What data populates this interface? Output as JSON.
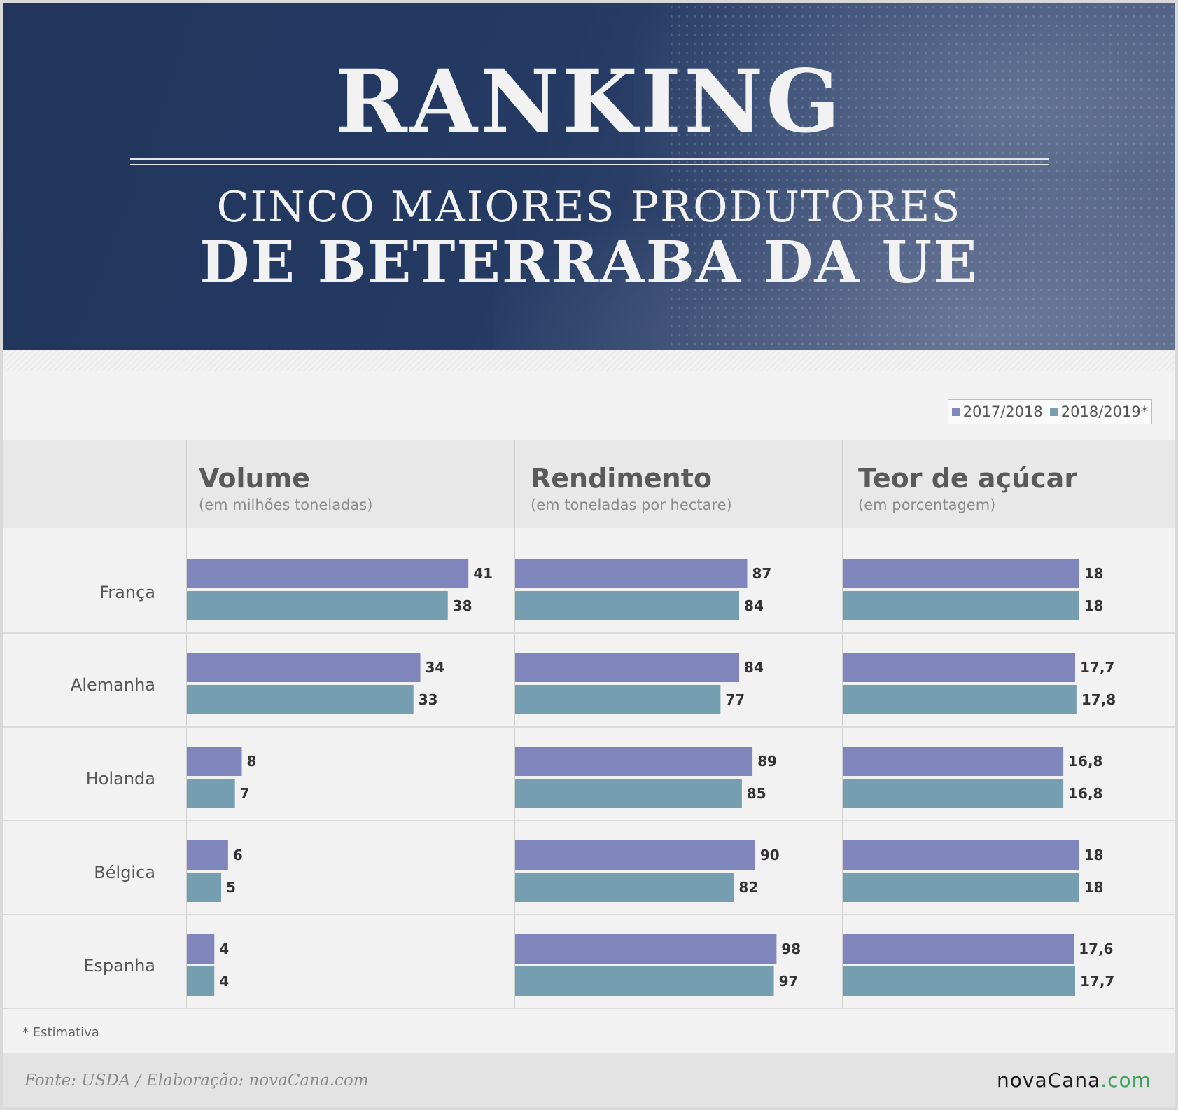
{
  "header": {
    "title": "RANKING",
    "subtitle_line1": "CINCO MAIORES PRODUTORES",
    "subtitle_line2": "DE BETERRABA DA UE"
  },
  "legend": {
    "series1": "2017/2018",
    "series2": "2018/2019*"
  },
  "columns": [
    {
      "title": "Volume",
      "subtitle": "(em milhões toneladas)"
    },
    {
      "title": "Rendimento",
      "subtitle": "(em toneladas por hectare)"
    },
    {
      "title": "Teor de açúcar",
      "subtitle": "(em porcentagem)"
    }
  ],
  "countries": [
    "França",
    "Alemanha",
    "Holanda",
    "Bélgica",
    "Espanha"
  ],
  "chart_data": [
    {
      "type": "bar",
      "title": "Volume",
      "subtitle": "(em milhões toneladas)",
      "categories": [
        "França",
        "Alemanha",
        "Holanda",
        "Bélgica",
        "Espanha"
      ],
      "series": [
        {
          "name": "2017/2018",
          "values": [
            41,
            34,
            8,
            6,
            4
          ],
          "labels": [
            "41",
            "34",
            "8",
            "6",
            "4"
          ]
        },
        {
          "name": "2018/2019*",
          "values": [
            38,
            33,
            7,
            5,
            4
          ],
          "labels": [
            "38",
            "33",
            "7",
            "5",
            "4"
          ]
        }
      ],
      "xlim": [
        0,
        42
      ]
    },
    {
      "type": "bar",
      "title": "Rendimento",
      "subtitle": "(em toneladas por hectare)",
      "categories": [
        "França",
        "Alemanha",
        "Holanda",
        "Bélgica",
        "Espanha"
      ],
      "series": [
        {
          "name": "2017/2018",
          "values": [
            87,
            84,
            89,
            90,
            98
          ],
          "labels": [
            "87",
            "84",
            "89",
            "90",
            "98"
          ]
        },
        {
          "name": "2018/2019*",
          "values": [
            84,
            77,
            85,
            82,
            97
          ],
          "labels": [
            "84",
            "77",
            "85",
            "82",
            "97"
          ]
        }
      ],
      "xlim": [
        0,
        100
      ]
    },
    {
      "type": "bar",
      "title": "Teor de açúcar",
      "subtitle": "(em porcentagem)",
      "categories": [
        "França",
        "Alemanha",
        "Holanda",
        "Bélgica",
        "Espanha"
      ],
      "series": [
        {
          "name": "2017/2018",
          "values": [
            18,
            17.7,
            16.8,
            18,
            17.6
          ],
          "labels": [
            "18",
            "17,7",
            "16,8",
            "18",
            "17,6"
          ]
        },
        {
          "name": "2018/2019*",
          "values": [
            18,
            17.8,
            16.8,
            18,
            17.7
          ],
          "labels": [
            "18",
            "17,8",
            "16,8",
            "18",
            "17,7"
          ]
        }
      ],
      "xlim": [
        0,
        18.5
      ]
    }
  ],
  "colors": {
    "series1": "#7e86bb",
    "series2": "#769eb1"
  },
  "footnote": "* Estimativa",
  "footer": {
    "source": "Fonte: USDA / Elaboração: novaCana.com",
    "logo_main": "novaCana",
    "logo_domain": ".com"
  }
}
